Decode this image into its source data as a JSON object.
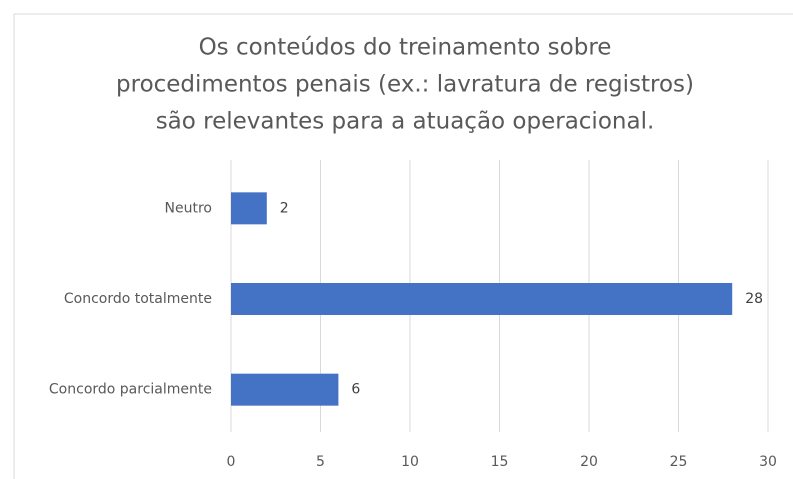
{
  "chart_data": {
    "type": "hbar",
    "title": [
      "Os conteúdos do treinamento sobre",
      "procedimentos penais (ex.: lavratura de registros)",
      "são relevantes para a atuação operacional."
    ],
    "categories": [
      "Neutro",
      "Concordo totalmente",
      "Concordo parcialmente"
    ],
    "values": [
      2,
      28,
      6
    ],
    "color": "#4472c4",
    "xlim": [
      0,
      30
    ],
    "xticks": [
      0,
      5,
      10,
      15,
      20,
      25,
      30
    ],
    "grid": true
  }
}
